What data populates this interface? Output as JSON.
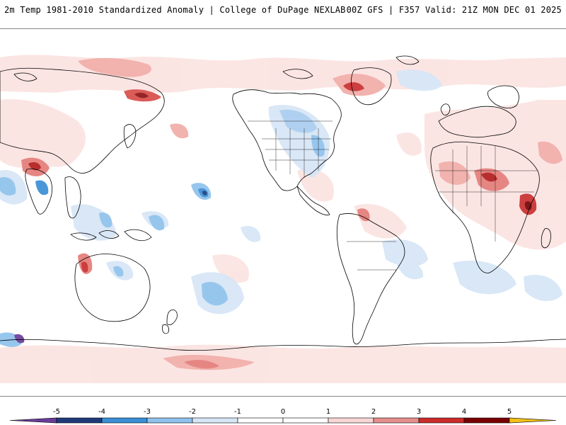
{
  "header": {
    "title_left": "2m Temp 1981-2010 Standardized Anomaly | College of DuPage NEXLAB",
    "title_right": "00Z GFS | F357 Valid: 21Z MON DEC 01 2025"
  },
  "map": {
    "projection": "equirectangular global",
    "coastline_color": "#000000",
    "background_color": "#ffffff"
  },
  "colorbar": {
    "ticks": [
      "-5",
      "-4",
      "-3",
      "-2",
      "-1",
      "0",
      "1",
      "2",
      "3",
      "4",
      "5"
    ],
    "colors": [
      "#6a3d9a",
      "#1f3a7a",
      "#3a8fd6",
      "#8fc2ec",
      "#d6e6f6",
      "#ffffff",
      "#ffffff",
      "#f7d7d5",
      "#e58f8c",
      "#cc2b2b",
      "#7a0000",
      "#f2c018"
    ]
  }
}
